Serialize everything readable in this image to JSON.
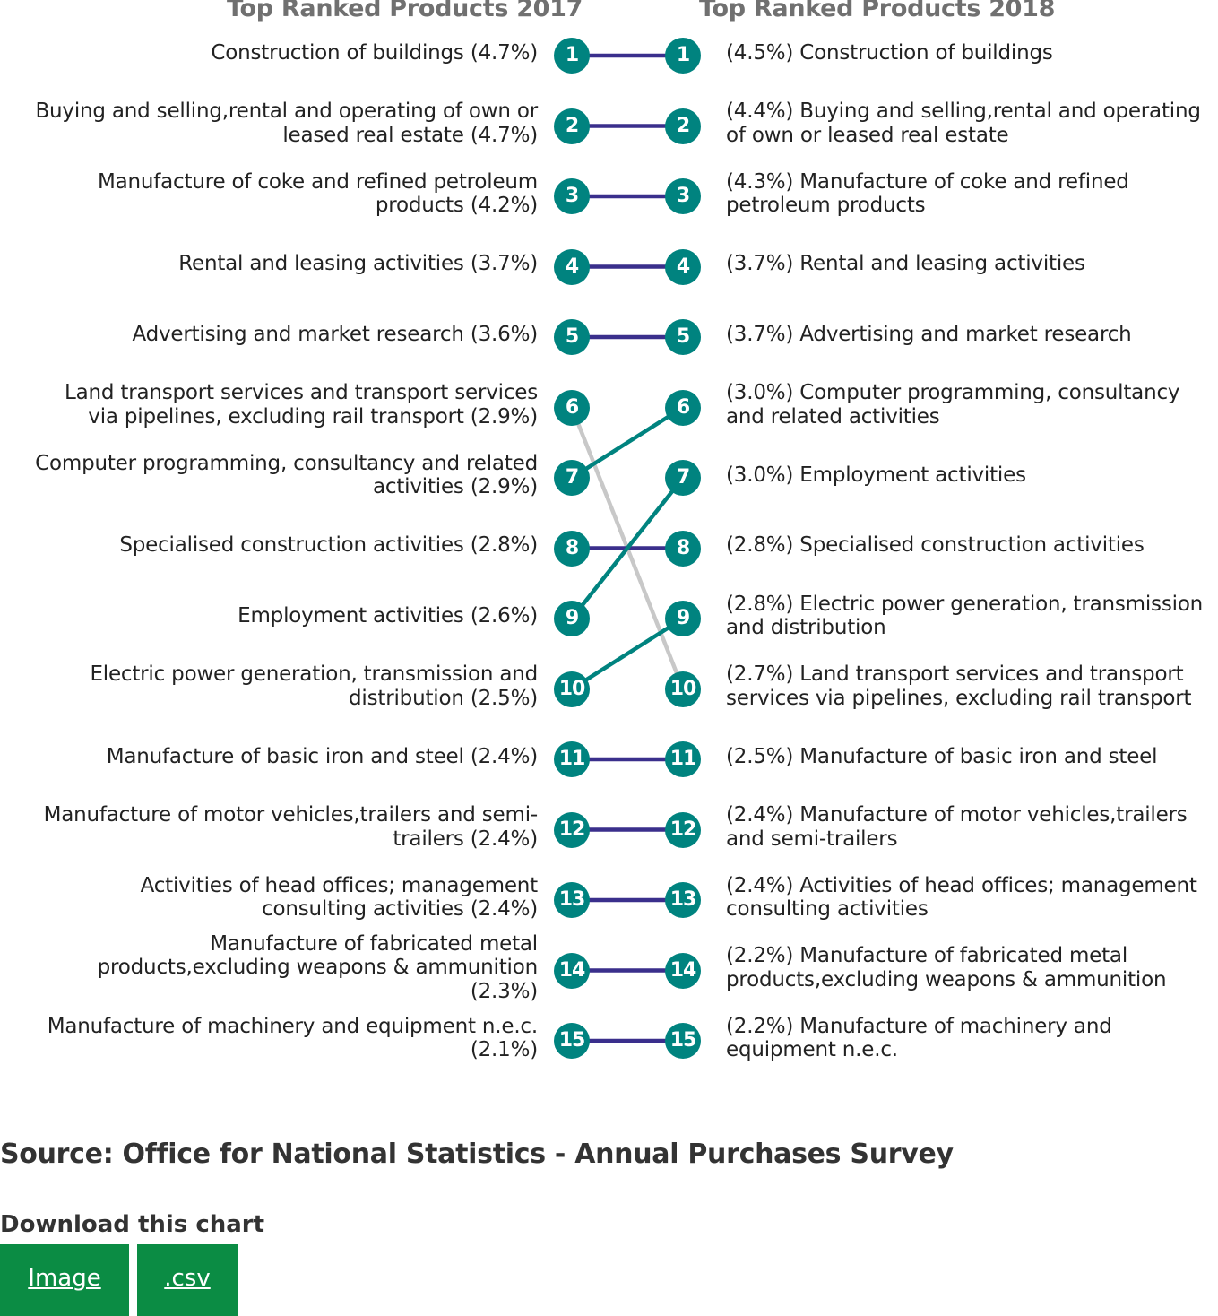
{
  "chart_data": {
    "type": "slope",
    "left_title": "Top Ranked Products 2017",
    "right_title": "Top Ranked Products 2018",
    "ranks": [
      "1",
      "2",
      "3",
      "4",
      "5",
      "6",
      "7",
      "8",
      "9",
      "10",
      "11",
      "12",
      "13",
      "14",
      "15"
    ],
    "left": [
      {
        "rank": 1,
        "text": "Construction of buildings (4.7%)",
        "new_rank": 1
      },
      {
        "rank": 2,
        "text": "Buying and selling,rental and operating of own or leased real estate (4.7%)",
        "new_rank": 2
      },
      {
        "rank": 3,
        "text": "Manufacture of coke and refined petroleum products (4.2%)",
        "new_rank": 3
      },
      {
        "rank": 4,
        "text": "Rental and leasing activities (3.7%)",
        "new_rank": 4
      },
      {
        "rank": 5,
        "text": "Advertising and market research (3.6%)",
        "new_rank": 5
      },
      {
        "rank": 6,
        "text": "Land transport services and transport services via pipelines, excluding rail transport (2.9%)",
        "new_rank": 10
      },
      {
        "rank": 7,
        "text": "Computer programming, consultancy and related activities (2.9%)",
        "new_rank": 6
      },
      {
        "rank": 8,
        "text": "Specialised construction activities (2.8%)",
        "new_rank": 8
      },
      {
        "rank": 9,
        "text": "Employment activities (2.6%)",
        "new_rank": 7
      },
      {
        "rank": 10,
        "text": "Electric power generation, transmission and distribution (2.5%)",
        "new_rank": 9
      },
      {
        "rank": 11,
        "text": "Manufacture of basic iron and steel (2.4%)",
        "new_rank": 11
      },
      {
        "rank": 12,
        "text": "Manufacture of motor vehicles,trailers and semi-trailers (2.4%)",
        "new_rank": 12
      },
      {
        "rank": 13,
        "text": "Activities of head offices; management consulting activities (2.4%)",
        "new_rank": 13
      },
      {
        "rank": 14,
        "text": "Manufacture of fabricated metal products,excluding weapons & ammunition (2.3%)",
        "new_rank": 14
      },
      {
        "rank": 15,
        "text": "Manufacture of machinery and equipment n.e.c. (2.1%)",
        "new_rank": 15
      }
    ],
    "right": [
      {
        "rank": 1,
        "text": "(4.5%) Construction of buildings"
      },
      {
        "rank": 2,
        "text": "(4.4%) Buying and selling,rental and operating of own or leased real estate"
      },
      {
        "rank": 3,
        "text": "(4.3%) Manufacture of coke and refined petroleum products"
      },
      {
        "rank": 4,
        "text": "(3.7%) Rental and leasing activities"
      },
      {
        "rank": 5,
        "text": "(3.7%) Advertising and market research"
      },
      {
        "rank": 6,
        "text": "(3.0%) Computer programming, consultancy and related activities"
      },
      {
        "rank": 7,
        "text": "(3.0%) Employment activities"
      },
      {
        "rank": 8,
        "text": "(2.8%) Specialised construction activities"
      },
      {
        "rank": 9,
        "text": "(2.8%) Electric power generation, transmission and distribution"
      },
      {
        "rank": 10,
        "text": "(2.7%) Land transport services and transport services via pipelines, excluding rail transport"
      },
      {
        "rank": 11,
        "text": "(2.5%) Manufacture of basic iron and steel"
      },
      {
        "rank": 12,
        "text": "(2.4%) Manufacture of motor vehicles,trailers and semi-trailers"
      },
      {
        "rank": 13,
        "text": "(2.4%) Activities of head offices; management consulting activities"
      },
      {
        "rank": 14,
        "text": "(2.2%) Manufacture of fabricated metal products,excluding weapons & ammunition"
      },
      {
        "rank": 15,
        "text": "(2.2%) Manufacture of machinery and equipment n.e.c."
      }
    ],
    "colors": {
      "same": "#3a2f8c",
      "up": "#00837f",
      "down": "#c8c8c8",
      "badge": "#00837f"
    }
  },
  "source": "Source: Office for National Statistics - Annual Purchases Survey",
  "download": {
    "heading": "Download this chart",
    "image_label": "Image",
    "csv_label": ".csv",
    "button_color": "#0b8c44"
  }
}
